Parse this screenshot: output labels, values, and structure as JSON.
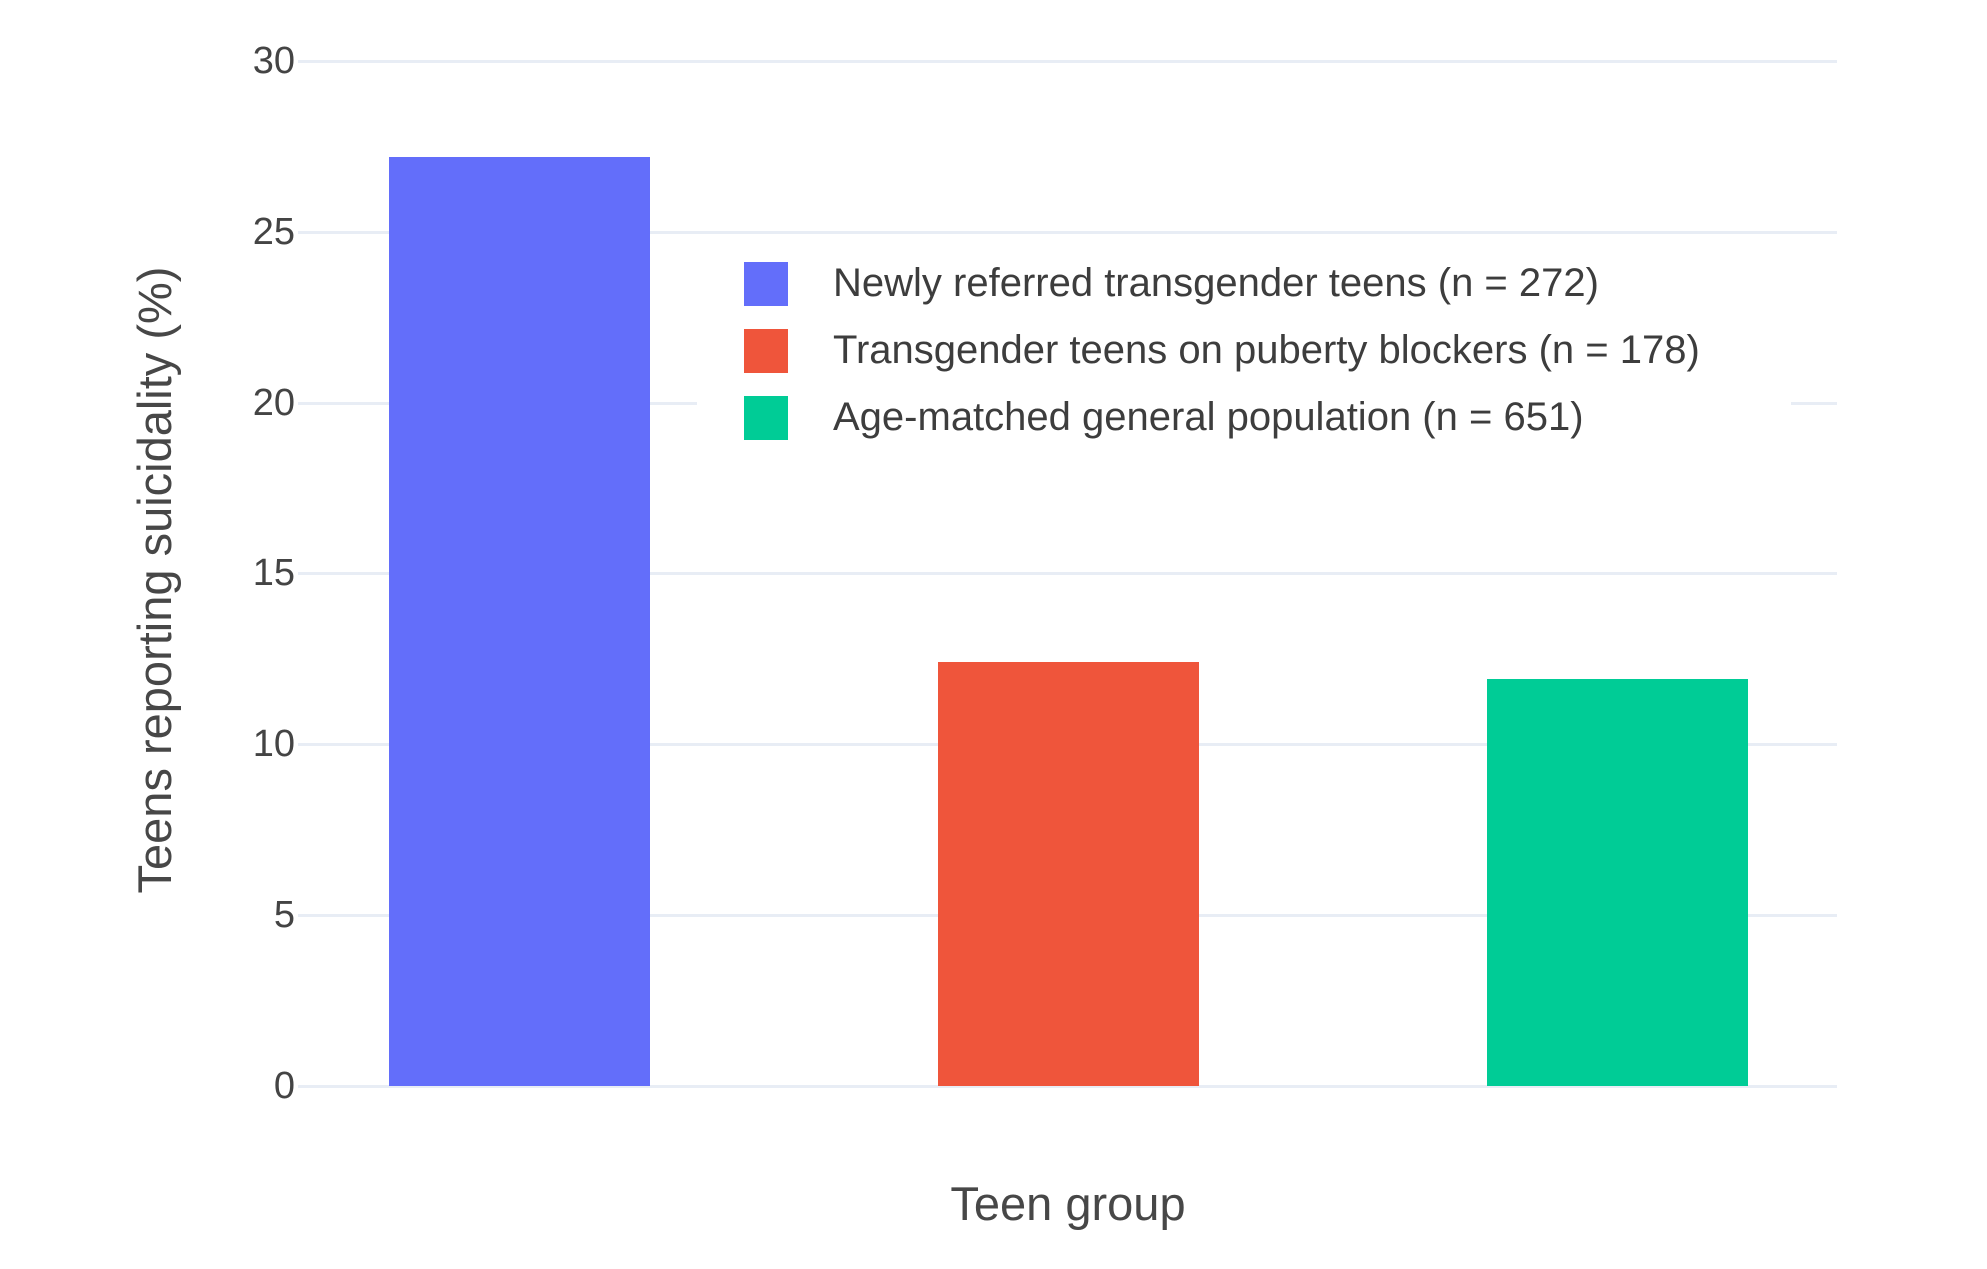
{
  "chart_data": {
    "type": "bar",
    "title": "",
    "xlabel": "Teen group",
    "ylabel": "Teens reporting suicidality (%)",
    "ylim": [
      0,
      30
    ],
    "yticks": [
      0,
      5,
      10,
      15,
      20,
      25,
      30
    ],
    "grid": true,
    "legend_position": "inside-top-center",
    "background_color": "#ffffff",
    "gridline_color": "#e8edf5",
    "categories": [
      "Newly referred transgender teens",
      "Transgender teens on puberty blockers",
      "Age-matched general population"
    ],
    "series": [
      {
        "name": "Newly referred transgender teens (n = 272)",
        "values": [
          27.2
        ],
        "color": "#636EFA"
      },
      {
        "name": "Transgender teens on puberty blockers (n = 178)",
        "values": [
          12.4
        ],
        "color": "#EF553B"
      },
      {
        "name": "Age-matched general population (n = 651)",
        "values": [
          11.9
        ],
        "color": "#00CC96"
      }
    ]
  }
}
